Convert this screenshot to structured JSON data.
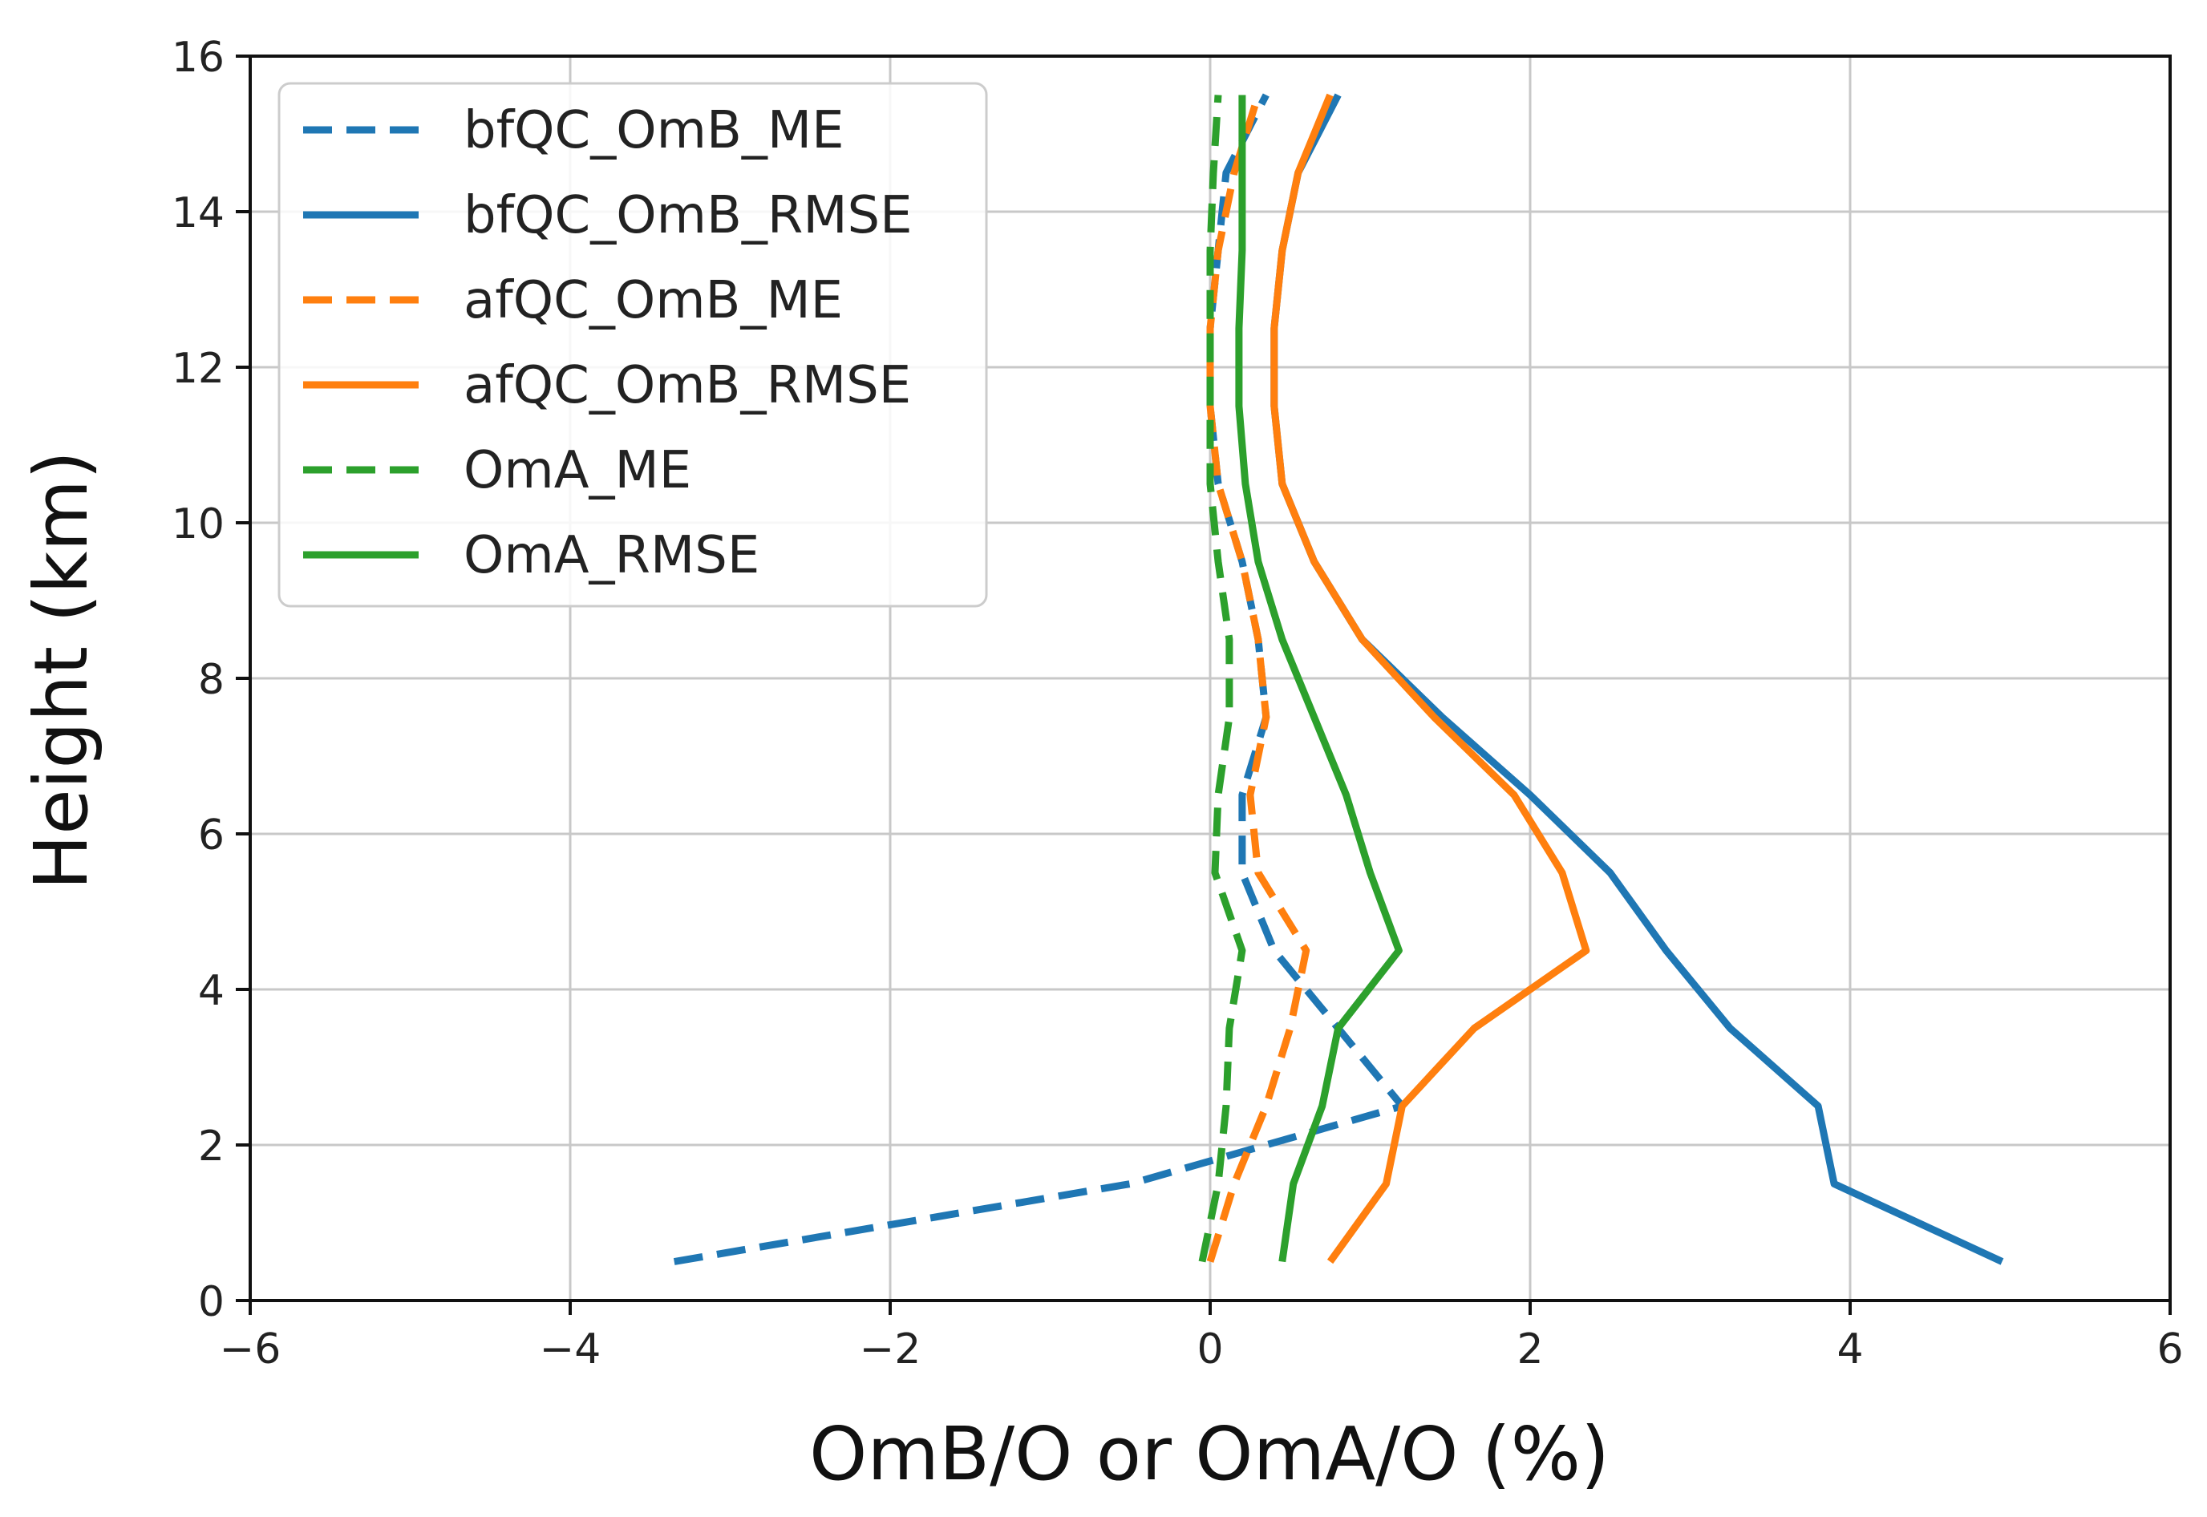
{
  "chart_data": {
    "type": "line",
    "title": "",
    "xlabel": "OmB/O or OmA/O (%)",
    "ylabel": "Height (km)",
    "xlim": [
      -6,
      6
    ],
    "ylim": [
      0,
      16
    ],
    "xticks": [
      -6,
      -4,
      -2,
      0,
      2,
      4,
      6
    ],
    "yticks": [
      0,
      2,
      4,
      6,
      8,
      10,
      12,
      14,
      16
    ],
    "xtick_labels": [
      "−6",
      "−4",
      "−2",
      "0",
      "2",
      "4",
      "6"
    ],
    "ytick_labels": [
      "0",
      "2",
      "4",
      "6",
      "8",
      "10",
      "12",
      "14",
      "16"
    ],
    "grid": true,
    "legend_position": "top-left",
    "heights": [
      0.5,
      1.5,
      2.5,
      3.5,
      4.5,
      5.5,
      6.5,
      7.5,
      8.5,
      9.5,
      10.5,
      11.5,
      12.5,
      13.5,
      14.5,
      15.5
    ],
    "series": [
      {
        "name": "bfQC_OmB_ME",
        "color": "#1f77b4",
        "style": "dashed",
        "values": [
          -3.35,
          -0.5,
          1.2,
          0.8,
          0.4,
          0.2,
          0.2,
          0.35,
          0.3,
          0.2,
          0.05,
          0.0,
          0.0,
          0.05,
          0.1,
          0.35
        ]
      },
      {
        "name": "bfQC_OmB_RMSE",
        "color": "#1f77b4",
        "style": "solid",
        "values": [
          4.95,
          3.9,
          3.8,
          3.25,
          2.85,
          2.5,
          2.0,
          1.45,
          0.95,
          0.65,
          0.45,
          0.4,
          0.4,
          0.45,
          0.55,
          0.8
        ]
      },
      {
        "name": "afQC_OmB_ME",
        "color": "#ff7f0e",
        "style": "dashed",
        "values": [
          0.0,
          0.15,
          0.35,
          0.5,
          0.6,
          0.3,
          0.25,
          0.35,
          0.3,
          0.2,
          0.05,
          0.0,
          0.0,
          0.05,
          0.15,
          0.3
        ]
      },
      {
        "name": "afQC_OmB_RMSE",
        "color": "#ff7f0e",
        "style": "solid",
        "values": [
          0.75,
          1.1,
          1.2,
          1.65,
          2.35,
          2.2,
          1.9,
          1.4,
          0.95,
          0.65,
          0.45,
          0.4,
          0.4,
          0.45,
          0.55,
          0.75
        ]
      },
      {
        "name": "OmA_ME",
        "color": "#2ca02c",
        "style": "dashed",
        "values": [
          -0.05,
          0.05,
          0.1,
          0.12,
          0.2,
          0.03,
          0.05,
          0.12,
          0.12,
          0.05,
          0.0,
          0.0,
          0.0,
          0.0,
          0.02,
          0.05
        ]
      },
      {
        "name": "OmA_RMSE",
        "color": "#2ca02c",
        "style": "solid",
        "values": [
          0.45,
          0.52,
          0.7,
          0.8,
          1.18,
          1.0,
          0.85,
          0.65,
          0.45,
          0.3,
          0.22,
          0.18,
          0.18,
          0.2,
          0.2,
          0.2
        ]
      }
    ]
  }
}
